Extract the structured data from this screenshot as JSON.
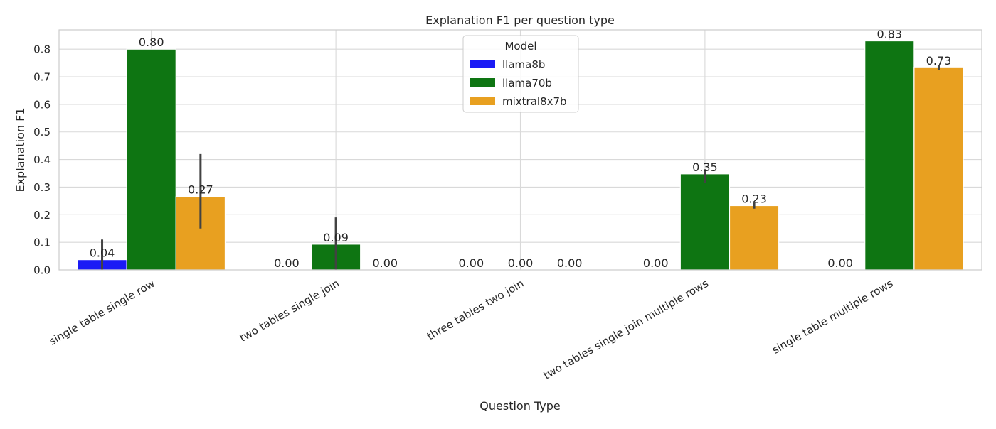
{
  "chart_data": {
    "type": "bar",
    "title": "Explanation F1 per question type",
    "xlabel": "Question Type",
    "ylabel": "Explanation F1",
    "ylim": [
      0,
      0.87
    ],
    "yticks": [
      "0.0",
      "0.1",
      "0.2",
      "0.3",
      "0.4",
      "0.5",
      "0.6",
      "0.7",
      "0.8"
    ],
    "grid": true,
    "legend": {
      "title": "Model",
      "placement": "top-center"
    },
    "categories": [
      "single table single row",
      "two tables single join",
      "three tables two join",
      "two tables single join multiple rows",
      "single table multiple rows"
    ],
    "series": [
      {
        "name": "llama8b",
        "color": "#1a1af5",
        "values": [
          0.037,
          0.0,
          0.0,
          0.0,
          0.0
        ],
        "labels": [
          "0.04",
          "0.00",
          "0.00",
          "0.00",
          "0.00"
        ],
        "error": [
          [
            0.0,
            0.11
          ],
          null,
          null,
          null,
          null
        ]
      },
      {
        "name": "llama70b",
        "color": "#0e7512",
        "values": [
          0.8,
          0.093,
          0.0,
          0.348,
          0.83
        ],
        "labels": [
          "0.80",
          "0.09",
          "0.00",
          "0.35",
          "0.83"
        ],
        "error": [
          null,
          [
            0.0,
            0.19
          ],
          null,
          [
            0.315,
            0.365
          ],
          null
        ]
      },
      {
        "name": "mixtral8x7b",
        "color": "#e8a020",
        "values": [
          0.266,
          0.0,
          0.0,
          0.233,
          0.733
        ],
        "labels": [
          "0.27",
          "0.00",
          "0.00",
          "0.23",
          "0.73"
        ],
        "error": [
          [
            0.15,
            0.42
          ],
          null,
          null,
          [
            0.222,
            0.243
          ],
          [
            0.725,
            0.742
          ]
        ]
      }
    ]
  }
}
